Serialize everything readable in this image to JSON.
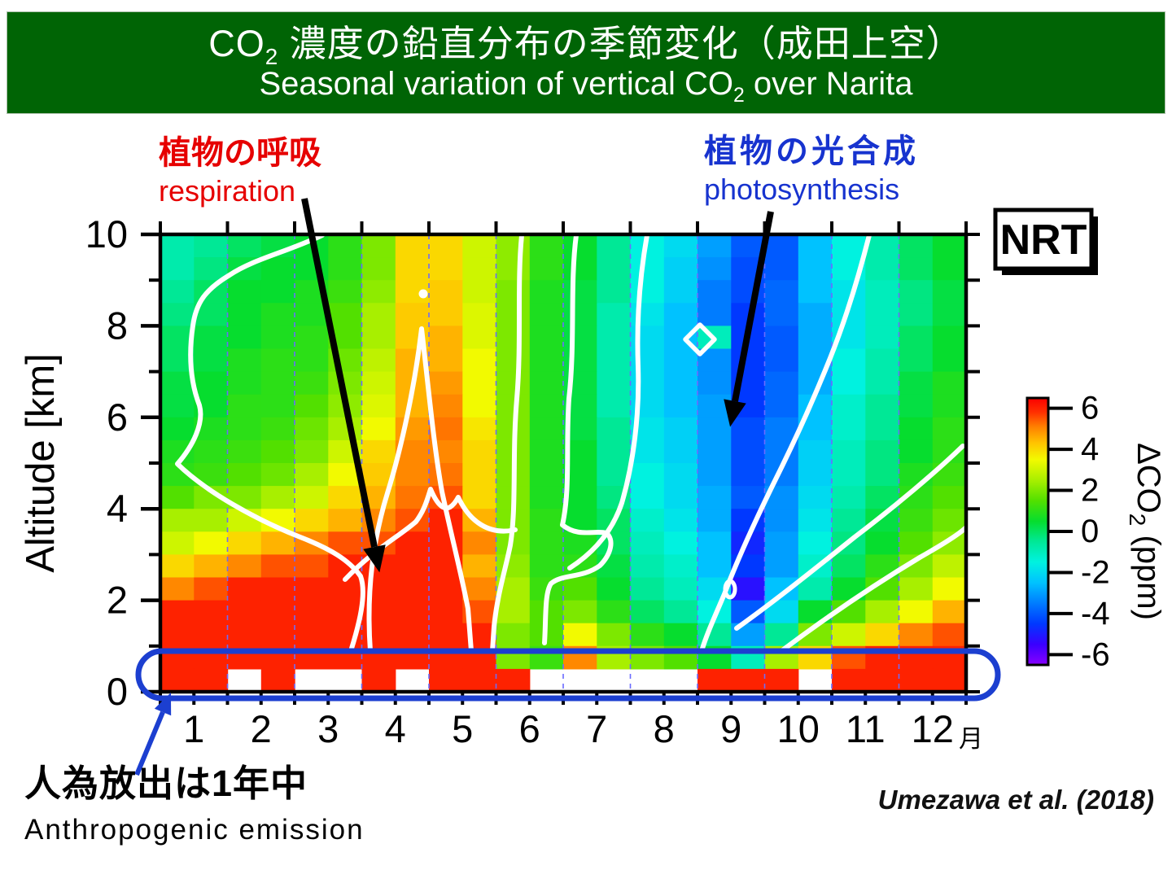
{
  "banner": {
    "bg_color": "#006405",
    "text_color": "#ffffff",
    "jp_pre": "CO",
    "jp_sub": "2",
    "jp_post": " 濃度の鉛直分布の季節変化（成田上空）",
    "en_pre": "Seasonal variation of vertical CO",
    "en_sub": "2",
    "en_post": " over Narita"
  },
  "annotations": {
    "respiration": {
      "jp": "植物の呼吸",
      "en": "respiration",
      "color": "#e60000"
    },
    "photosynthesis": {
      "jp": "植物の光合成",
      "en": "photosynthesis",
      "color": "#1733cf"
    },
    "anthropogenic": {
      "jp": "人為放出は1年中",
      "en": "Anthropogenic  emission",
      "color": "#000000"
    },
    "station_label": "NRT",
    "citation": "Umezawa et al. (2018)"
  },
  "chart_data": {
    "type": "heatmap",
    "title": "Seasonal variation of vertical CO2 over Narita (NRT)",
    "xlabel": "month",
    "x_unit": "月",
    "ylabel": "Altitude [km]",
    "ylim": [
      0,
      10
    ],
    "xlim_months": [
      1,
      12
    ],
    "grid": "dashed vertical month boundaries",
    "y_tick_labels": [
      "10",
      "8",
      "6",
      "4",
      "2",
      "0"
    ],
    "y_tick_values": [
      10,
      8,
      6,
      4,
      2,
      0
    ],
    "x_tick_labels": [
      "1",
      "2",
      "3",
      "4",
      "5",
      "6",
      "7",
      "8",
      "9",
      "10",
      "11",
      "12"
    ],
    "columns_per_month": 2,
    "row_thickness_km": 0.5,
    "rows_top_to_bottom_km": "10 down to 0",
    "colorbar": {
      "label_pre": "ΔCO",
      "label_sub": "2",
      "label_post": " (ppm)",
      "tick_values": [
        6,
        4,
        2,
        0,
        -2,
        -4,
        -6
      ],
      "range": [
        -6.5,
        6.5
      ]
    },
    "colormap_stops": [
      [
        -6.5,
        "#8800ff"
      ],
      [
        -5.5,
        "#3a00ff"
      ],
      [
        -4.5,
        "#0038ff"
      ],
      [
        -3.5,
        "#007cff"
      ],
      [
        -2.5,
        "#00c2ff"
      ],
      [
        -1.5,
        "#00f2e0"
      ],
      [
        -0.5,
        "#00e896"
      ],
      [
        0.5,
        "#06dd2e"
      ],
      [
        1.5,
        "#52e000"
      ],
      [
        2.5,
        "#a8ef00"
      ],
      [
        3.5,
        "#f2fa00"
      ],
      [
        4.3,
        "#ffc400"
      ],
      [
        5.1,
        "#ff8000"
      ],
      [
        5.8,
        "#ff3000"
      ],
      [
        6.5,
        "#fb0000"
      ]
    ],
    "values_note": "ΔCO2 ppm; 20 rows (10km top -> 0km bottom, 0.5km bins) x 24 cols (half-month bins Jan->Dec); null = missing (white)",
    "values": [
      [
        -0.8,
        -0.5,
        0.0,
        0.3,
        0.5,
        1.0,
        2.0,
        4.0,
        4.0,
        3.0,
        2.2,
        1.0,
        0.5,
        -0.5,
        -1.5,
        -2.0,
        -3.0,
        -4.0,
        -4.0,
        -2.5,
        -1.5,
        -0.8,
        0.0,
        0.5
      ],
      [
        -0.8,
        -0.3,
        0.3,
        0.5,
        0.5,
        1.0,
        2.0,
        4.0,
        4.0,
        3.0,
        2.2,
        1.0,
        0.5,
        -0.5,
        -1.5,
        -2.2,
        -3.2,
        -4.2,
        -4.0,
        -2.5,
        -1.5,
        -0.8,
        0.0,
        0.5
      ],
      [
        -0.5,
        0.0,
        0.5,
        0.5,
        0.8,
        1.2,
        2.2,
        4.0,
        4.2,
        3.0,
        2.0,
        0.8,
        0.3,
        -0.5,
        -1.5,
        -2.2,
        -3.5,
        -4.2,
        -3.8,
        -2.5,
        -1.8,
        -1.0,
        -0.3,
        0.3
      ],
      [
        -0.3,
        0.0,
        0.5,
        0.8,
        0.8,
        1.5,
        2.5,
        4.2,
        4.2,
        3.2,
        2.0,
        0.8,
        0.3,
        -0.8,
        -1.8,
        -2.5,
        -3.5,
        -4.5,
        -3.8,
        -2.8,
        -1.8,
        -1.0,
        -0.3,
        0.3
      ],
      [
        0.0,
        0.3,
        0.5,
        0.8,
        1.0,
        1.5,
        2.5,
        4.2,
        4.5,
        3.2,
        2.0,
        0.8,
        0.3,
        -0.8,
        -2.0,
        -2.5,
        -1.0,
        -4.5,
        -4.0,
        -2.8,
        -1.8,
        -1.0,
        0.0,
        0.5
      ],
      [
        0.0,
        0.3,
        0.8,
        1.0,
        1.0,
        1.8,
        2.8,
        4.5,
        4.5,
        3.5,
        2.0,
        0.8,
        0.3,
        -0.8,
        -2.0,
        -2.5,
        -3.2,
        -4.5,
        -4.0,
        -2.8,
        -1.5,
        -0.8,
        0.0,
        0.5
      ],
      [
        0.3,
        0.5,
        0.8,
        1.0,
        1.2,
        2.0,
        3.0,
        4.5,
        4.8,
        3.5,
        2.0,
        0.8,
        0.3,
        -0.8,
        -2.0,
        -2.5,
        -3.2,
        -4.5,
        -3.8,
        -2.8,
        -1.5,
        -0.8,
        0.3,
        0.8
      ],
      [
        0.3,
        0.5,
        1.0,
        1.0,
        1.5,
        2.2,
        3.2,
        4.5,
        5.0,
        3.5,
        2.0,
        0.8,
        0.3,
        -0.8,
        -2.0,
        -2.5,
        -3.0,
        -4.5,
        -3.8,
        -2.5,
        -1.2,
        -0.5,
        0.3,
        0.8
      ],
      [
        0.5,
        0.8,
        1.0,
        1.2,
        1.8,
        2.5,
        3.5,
        4.8,
        5.2,
        3.8,
        2.0,
        0.8,
        0.3,
        -0.5,
        -1.8,
        -2.2,
        -3.0,
        -4.2,
        -3.5,
        -2.5,
        -1.2,
        -0.5,
        0.5,
        1.0
      ],
      [
        0.8,
        1.0,
        1.2,
        1.5,
        2.0,
        3.0,
        4.0,
        5.0,
        5.0,
        4.0,
        2.0,
        0.8,
        0.5,
        -0.5,
        -1.8,
        -2.2,
        -3.0,
        -4.2,
        -3.5,
        -2.2,
        -1.0,
        -0.3,
        0.5,
        1.0
      ],
      [
        1.0,
        1.2,
        1.5,
        1.8,
        2.5,
        3.5,
        4.2,
        5.0,
        5.2,
        4.0,
        2.0,
        0.8,
        0.5,
        -0.5,
        -1.5,
        -2.0,
        -3.0,
        -4.2,
        -3.5,
        -2.2,
        -1.0,
        -0.3,
        0.8,
        1.2
      ],
      [
        1.5,
        2.0,
        2.0,
        2.5,
        3.0,
        4.0,
        4.5,
        5.2,
        5.5,
        4.0,
        2.0,
        0.8,
        0.5,
        -0.3,
        -1.5,
        -2.0,
        -2.8,
        -4.0,
        -3.2,
        -2.0,
        -0.8,
        0.0,
        1.0,
        1.5
      ],
      [
        2.5,
        2.5,
        3.0,
        3.5,
        4.0,
        4.5,
        5.0,
        5.5,
        6.0,
        4.5,
        2.0,
        1.0,
        0.5,
        0.0,
        -1.2,
        -1.8,
        -2.8,
        -4.5,
        -3.2,
        -1.8,
        -0.5,
        0.3,
        1.2,
        1.8
      ],
      [
        3.0,
        3.5,
        4.0,
        4.5,
        5.0,
        5.5,
        5.5,
        6.0,
        6.0,
        5.0,
        2.0,
        1.0,
        0.8,
        0.0,
        -1.0,
        -1.5,
        -2.5,
        -4.8,
        -3.0,
        -1.5,
        -0.3,
        0.5,
        1.5,
        2.2
      ],
      [
        4.0,
        4.5,
        5.0,
        5.5,
        5.5,
        6.0,
        6.0,
        6.0,
        6.0,
        4.5,
        2.2,
        1.0,
        1.0,
        0.3,
        -0.8,
        -1.2,
        -2.5,
        -4.5,
        -3.0,
        -1.2,
        0.0,
        1.0,
        2.0,
        2.8
      ],
      [
        5.0,
        5.5,
        6.0,
        6.0,
        6.0,
        6.0,
        6.0,
        6.0,
        6.0,
        5.0,
        2.5,
        1.2,
        1.5,
        0.5,
        -0.5,
        -1.0,
        -2.0,
        -5.2,
        -2.5,
        -0.8,
        0.5,
        1.5,
        2.5,
        3.5
      ],
      [
        6.0,
        6.0,
        6.0,
        6.0,
        6.0,
        6.0,
        6.0,
        6.0,
        6.0,
        5.5,
        2.5,
        1.5,
        2.0,
        1.0,
        0.0,
        -0.5,
        -1.5,
        -4.0,
        -2.0,
        0.5,
        1.5,
        2.5,
        3.5,
        4.5
      ],
      [
        6.0,
        6.0,
        6.0,
        6.0,
        6.0,
        6.0,
        6.0,
        6.0,
        6.0,
        6.0,
        2.0,
        1.5,
        3.5,
        2.0,
        1.0,
        0.5,
        -0.5,
        -3.0,
        -0.5,
        2.0,
        3.0,
        4.0,
        5.0,
        5.5
      ],
      [
        6.0,
        6.0,
        6.0,
        6.0,
        6.0,
        6.0,
        6.0,
        6.0,
        6.0,
        6.0,
        2.0,
        1.2,
        5.0,
        2.5,
        2.0,
        1.5,
        0.5,
        -1.0,
        2.5,
        4.0,
        5.5,
        6.0,
        6.0,
        6.0
      ],
      [
        6.0,
        6.0,
        null,
        6.0,
        null,
        null,
        6.0,
        null,
        6.0,
        6.0,
        6.0,
        null,
        null,
        null,
        null,
        null,
        6.0,
        6.0,
        6.0,
        null,
        6.0,
        6.0,
        6.0,
        6.0
      ]
    ],
    "contour_paths": [
      "M396,289 C352,310 312,318 282,338 C252,356 241,372 237,400 C231,440 235,472 245,498 C251,520 237,548 218,570 C253,604 313,638 369,660 C405,674 429,688 443,708 C451,730 441,768 431,800",
      "M455,800 C450,730 458,664 476,606 C494,548 510,472 518,404 C526,472 533,548 543,604 C555,660 567,706 575,748 L579,800",
      "M424,712 C458,676 492,658 511,641 C521,628 525,614 529,601 C537,620 549,637 563,611 C577,641 601,658 633,651",
      "M641,289 C635,350 641,420 635,490 C629,560 635,620 627,670 C621,700 611,730 607,770 L605,800",
      "M708,289 C700,350 707,420 699,490 C695,550 701,600 691,645 C711,661 731,651 745,655 C755,663 751,681 737,695 C715,711 691,705 677,717 C669,729 671,760 669,790",
      "M795,289 C786,340 782,395 784,450 C786,510 778,570 764,618 C752,654 728,680 700,698",
      "M1068,289 C1055,340 1040,390 1020,440 C1000,490 975,545 950,595 C928,640 905,690 890,730 C878,758 868,780 862,800",
      "M905,772 C950,740 1000,700 1050,660 C1100,622 1150,580 1183,548",
      "M960,800 C1020,755 1080,715 1130,685 C1160,668 1180,655 1187,648"
    ],
    "highlight_box": "blue capsule around 0-0.5 km row (anthropogenic emission all year)"
  },
  "colors": {
    "capsule_blue": "#1c3fd0",
    "gridline_blue": "#6b6bff",
    "contour_white": "#ffffff",
    "arrow_black": "#000000"
  }
}
